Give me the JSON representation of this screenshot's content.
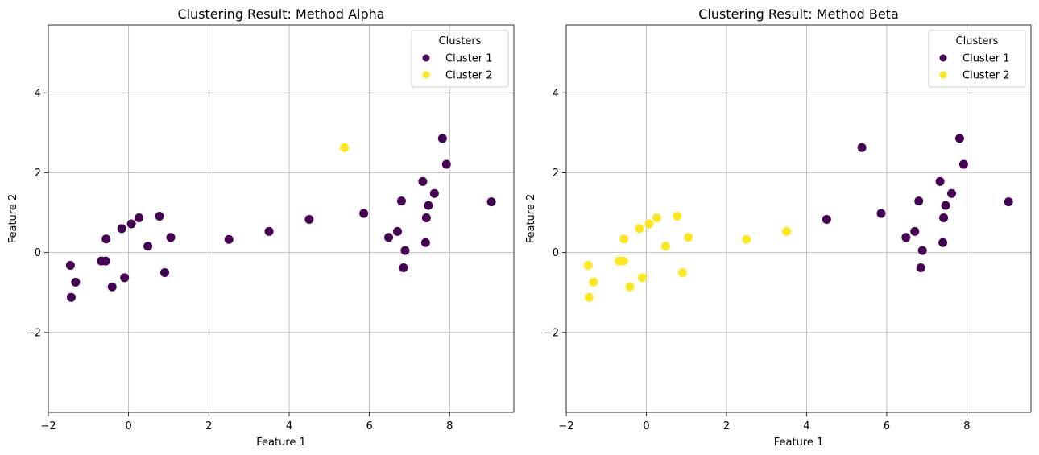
{
  "colors": {
    "cluster1": "#440154",
    "cluster2": "#fde725",
    "grid": "#b0b0b0",
    "axis": "#000000",
    "legend_border": "#cccccc"
  },
  "chart_data": [
    {
      "type": "scatter",
      "title": "Clustering Result: Method Alpha",
      "xlabel": "Feature 1",
      "ylabel": "Feature 2",
      "xlim": [
        -2.0,
        9.6
      ],
      "ylim": [
        -4.0,
        5.7
      ],
      "xticks": [
        -2,
        0,
        2,
        4,
        6,
        8
      ],
      "yticks": [
        -2,
        0,
        2,
        4
      ],
      "grid": true,
      "legend": {
        "title": "Clusters",
        "placement": "top-right",
        "entries": [
          {
            "label": "Cluster 1",
            "cluster": 1
          },
          {
            "label": "Cluster 2",
            "cluster": 2
          }
        ]
      },
      "points": [
        {
          "x": -1.45,
          "y": -0.32,
          "cluster": 1
        },
        {
          "x": -1.43,
          "y": -1.12,
          "cluster": 1
        },
        {
          "x": -1.32,
          "y": -0.74,
          "cluster": 1
        },
        {
          "x": -0.68,
          "y": -0.21,
          "cluster": 1
        },
        {
          "x": -0.57,
          "y": -0.21,
          "cluster": 1
        },
        {
          "x": -0.56,
          "y": 0.34,
          "cluster": 1
        },
        {
          "x": -0.41,
          "y": -0.86,
          "cluster": 1
        },
        {
          "x": -0.17,
          "y": 0.6,
          "cluster": 1
        },
        {
          "x": -0.1,
          "y": -0.63,
          "cluster": 1
        },
        {
          "x": 0.07,
          "y": 0.72,
          "cluster": 1
        },
        {
          "x": 0.26,
          "y": 0.87,
          "cluster": 1
        },
        {
          "x": 0.48,
          "y": 0.16,
          "cluster": 1
        },
        {
          "x": 0.77,
          "y": 0.91,
          "cluster": 1
        },
        {
          "x": 0.9,
          "y": -0.5,
          "cluster": 1
        },
        {
          "x": 1.05,
          "y": 0.38,
          "cluster": 1
        },
        {
          "x": 2.5,
          "y": 0.33,
          "cluster": 1
        },
        {
          "x": 3.5,
          "y": 0.53,
          "cluster": 1
        },
        {
          "x": 4.5,
          "y": 0.83,
          "cluster": 1
        },
        {
          "x": 5.38,
          "y": 2.63,
          "cluster": 2
        },
        {
          "x": 5.86,
          "y": 0.98,
          "cluster": 1
        },
        {
          "x": 6.48,
          "y": 0.38,
          "cluster": 1
        },
        {
          "x": 6.7,
          "y": 0.53,
          "cluster": 1
        },
        {
          "x": 6.8,
          "y": 1.29,
          "cluster": 1
        },
        {
          "x": 6.85,
          "y": -0.38,
          "cluster": 1
        },
        {
          "x": 6.89,
          "y": 0.05,
          "cluster": 1
        },
        {
          "x": 7.33,
          "y": 1.78,
          "cluster": 1
        },
        {
          "x": 7.4,
          "y": 0.25,
          "cluster": 1
        },
        {
          "x": 7.42,
          "y": 0.87,
          "cluster": 1
        },
        {
          "x": 7.47,
          "y": 1.18,
          "cluster": 1
        },
        {
          "x": 7.62,
          "y": 1.48,
          "cluster": 1
        },
        {
          "x": 7.82,
          "y": 2.86,
          "cluster": 1
        },
        {
          "x": 7.92,
          "y": 2.21,
          "cluster": 1
        },
        {
          "x": 9.04,
          "y": 1.27,
          "cluster": 1
        }
      ]
    },
    {
      "type": "scatter",
      "title": "Clustering Result: Method Beta",
      "xlabel": "Feature 1",
      "ylabel": "Feature 2",
      "xlim": [
        -2.0,
        9.6
      ],
      "ylim": [
        -4.0,
        5.7
      ],
      "xticks": [
        -2,
        0,
        2,
        4,
        6,
        8
      ],
      "yticks": [
        -2,
        0,
        2,
        4
      ],
      "grid": true,
      "legend": {
        "title": "Clusters",
        "placement": "top-right",
        "entries": [
          {
            "label": "Cluster 1",
            "cluster": 1
          },
          {
            "label": "Cluster 2",
            "cluster": 2
          }
        ]
      },
      "points": [
        {
          "x": -1.45,
          "y": -0.32,
          "cluster": 2
        },
        {
          "x": -1.43,
          "y": -1.12,
          "cluster": 2
        },
        {
          "x": -1.32,
          "y": -0.74,
          "cluster": 2
        },
        {
          "x": -0.68,
          "y": -0.21,
          "cluster": 2
        },
        {
          "x": -0.57,
          "y": -0.21,
          "cluster": 2
        },
        {
          "x": -0.56,
          "y": 0.34,
          "cluster": 2
        },
        {
          "x": -0.41,
          "y": -0.86,
          "cluster": 2
        },
        {
          "x": -0.17,
          "y": 0.6,
          "cluster": 2
        },
        {
          "x": -0.1,
          "y": -0.63,
          "cluster": 2
        },
        {
          "x": 0.07,
          "y": 0.72,
          "cluster": 2
        },
        {
          "x": 0.26,
          "y": 0.87,
          "cluster": 2
        },
        {
          "x": 0.48,
          "y": 0.16,
          "cluster": 2
        },
        {
          "x": 0.77,
          "y": 0.91,
          "cluster": 2
        },
        {
          "x": 0.9,
          "y": -0.5,
          "cluster": 2
        },
        {
          "x": 1.05,
          "y": 0.38,
          "cluster": 2
        },
        {
          "x": 2.5,
          "y": 0.33,
          "cluster": 2
        },
        {
          "x": 3.5,
          "y": 0.53,
          "cluster": 2
        },
        {
          "x": 4.5,
          "y": 0.83,
          "cluster": 1
        },
        {
          "x": 5.38,
          "y": 2.63,
          "cluster": 1
        },
        {
          "x": 5.86,
          "y": 0.98,
          "cluster": 1
        },
        {
          "x": 6.48,
          "y": 0.38,
          "cluster": 1
        },
        {
          "x": 6.7,
          "y": 0.53,
          "cluster": 1
        },
        {
          "x": 6.8,
          "y": 1.29,
          "cluster": 1
        },
        {
          "x": 6.85,
          "y": -0.38,
          "cluster": 1
        },
        {
          "x": 6.89,
          "y": 0.05,
          "cluster": 1
        },
        {
          "x": 7.33,
          "y": 1.78,
          "cluster": 1
        },
        {
          "x": 7.4,
          "y": 0.25,
          "cluster": 1
        },
        {
          "x": 7.42,
          "y": 0.87,
          "cluster": 1
        },
        {
          "x": 7.47,
          "y": 1.18,
          "cluster": 1
        },
        {
          "x": 7.62,
          "y": 1.48,
          "cluster": 1
        },
        {
          "x": 7.82,
          "y": 2.86,
          "cluster": 1
        },
        {
          "x": 7.92,
          "y": 2.21,
          "cluster": 1
        },
        {
          "x": 9.04,
          "y": 1.27,
          "cluster": 1
        }
      ]
    }
  ]
}
